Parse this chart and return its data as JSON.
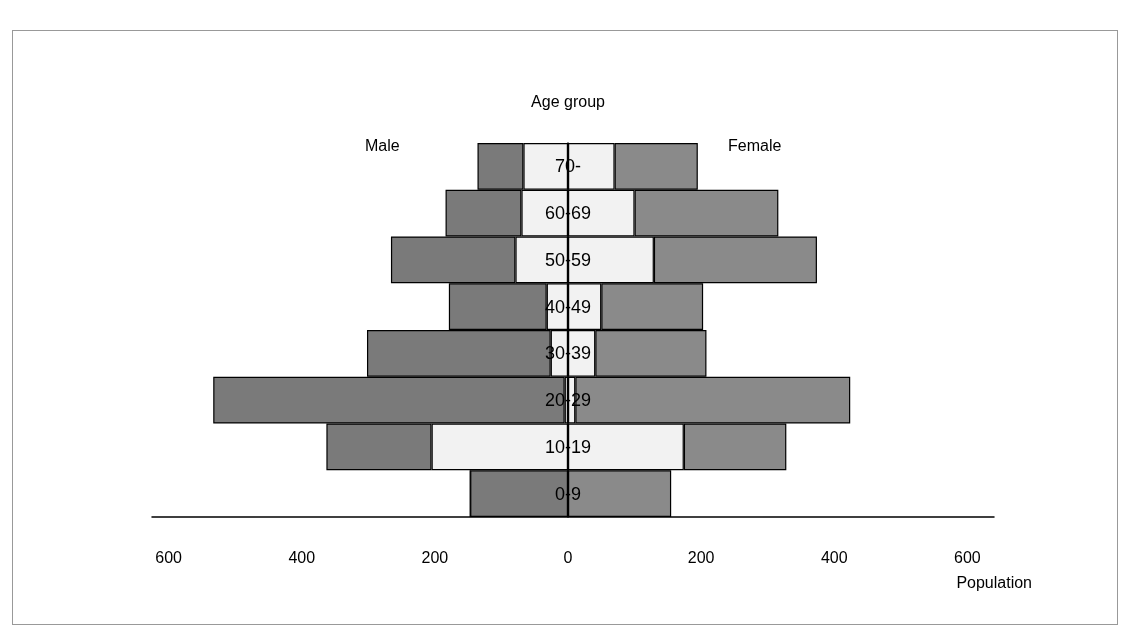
{
  "chart_data": {
    "type": "bar",
    "orientation": "horizontal",
    "stacked": true,
    "ylabel": "Age group",
    "xlabel": "Population",
    "annotations": [
      "Male",
      "Female"
    ],
    "categories": [
      "70-",
      "60-69",
      "50-59",
      "40-49",
      "30-39",
      "20-29",
      "10-19",
      "0-9"
    ],
    "series": [
      {
        "color": "#f2f2f2",
        "values": [
          -67,
          -70,
          -79,
          -32,
          -26,
          -5,
          -205,
          0
        ]
      },
      {
        "color": "#7a7a7a",
        "values": [
          -69,
          -114,
          -187,
          -147,
          -276,
          -528,
          -158,
          -147
        ]
      },
      {
        "color": "#f2f2f2",
        "values": [
          70,
          100,
          129,
          50,
          41,
          11,
          174,
          0
        ]
      },
      {
        "color": "#8a8a8a",
        "values": [
          125,
          216,
          245,
          153,
          167,
          413,
          154,
          155
        ]
      }
    ],
    "xlim": [
      -625,
      640
    ],
    "xticks": [
      {
        "value": -600,
        "label": "600"
      },
      {
        "value": -400,
        "label": "400"
      },
      {
        "value": -200,
        "label": "200"
      },
      0,
      200,
      400,
      600
    ],
    "tick_labels": "x"
  }
}
